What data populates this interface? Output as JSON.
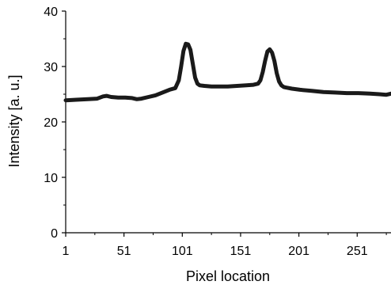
{
  "chart_data": {
    "type": "line",
    "title": "",
    "xlabel": "Pixel location",
    "ylabel": "Intensity [a. u.]",
    "xlim": [
      1,
      280
    ],
    "ylim": [
      0,
      40
    ],
    "x_ticks": [
      1,
      51,
      101,
      151,
      201,
      251
    ],
    "y_ticks": [
      0,
      10,
      20,
      30,
      40
    ],
    "grid": false,
    "legend": "none",
    "line_color": "#1a1a1a",
    "series": [
      {
        "x": [
          1,
          10,
          20,
          28,
          33,
          36,
          40,
          46,
          52,
          58,
          62,
          66,
          72,
          78,
          84,
          90,
          95,
          98,
          100,
          102,
          104,
          106,
          108,
          110,
          112,
          114,
          116,
          120,
          126,
          132,
          140,
          148,
          156,
          162,
          166,
          168,
          170,
          172,
          174,
          176,
          178,
          180,
          182,
          184,
          186,
          188,
          190,
          195,
          202,
          212,
          222,
          232,
          242,
          252,
          262,
          270,
          276,
          280
        ],
        "y": [
          23.9,
          24.0,
          24.1,
          24.2,
          24.6,
          24.7,
          24.5,
          24.4,
          24.4,
          24.3,
          24.1,
          24.2,
          24.5,
          24.8,
          25.3,
          25.8,
          26.1,
          27.5,
          30.0,
          32.8,
          34.1,
          34.0,
          33.0,
          30.5,
          28.0,
          26.9,
          26.6,
          26.5,
          26.4,
          26.4,
          26.4,
          26.5,
          26.6,
          26.7,
          26.9,
          27.5,
          29.0,
          31.0,
          32.7,
          33.1,
          32.5,
          31.0,
          28.8,
          27.3,
          26.6,
          26.3,
          26.2,
          26.0,
          25.8,
          25.6,
          25.4,
          25.3,
          25.2,
          25.2,
          25.1,
          25.0,
          24.9,
          25.1
        ]
      }
    ]
  }
}
